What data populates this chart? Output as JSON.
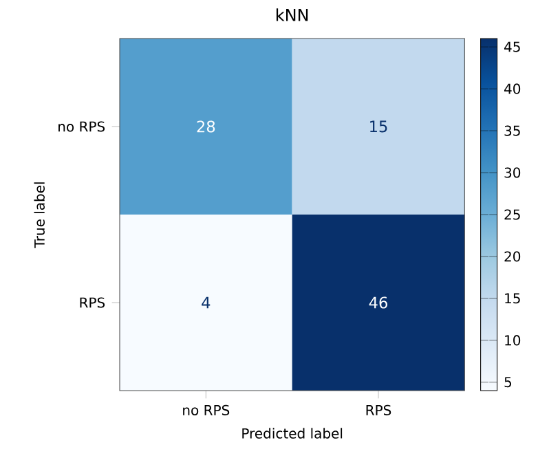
{
  "chart_data": {
    "type": "heatmap",
    "title": "kNN",
    "xlabel": "Predicted label",
    "ylabel": "True label",
    "categories": [
      "no RPS",
      "RPS"
    ],
    "y_categories": [
      "no RPS",
      "RPS"
    ],
    "cells": [
      [
        28,
        15
      ],
      [
        4,
        46
      ]
    ],
    "clim": [
      4,
      46
    ],
    "cticks": [
      5,
      10,
      15,
      20,
      25,
      30,
      35,
      40,
      45
    ],
    "data_labels": true
  }
}
